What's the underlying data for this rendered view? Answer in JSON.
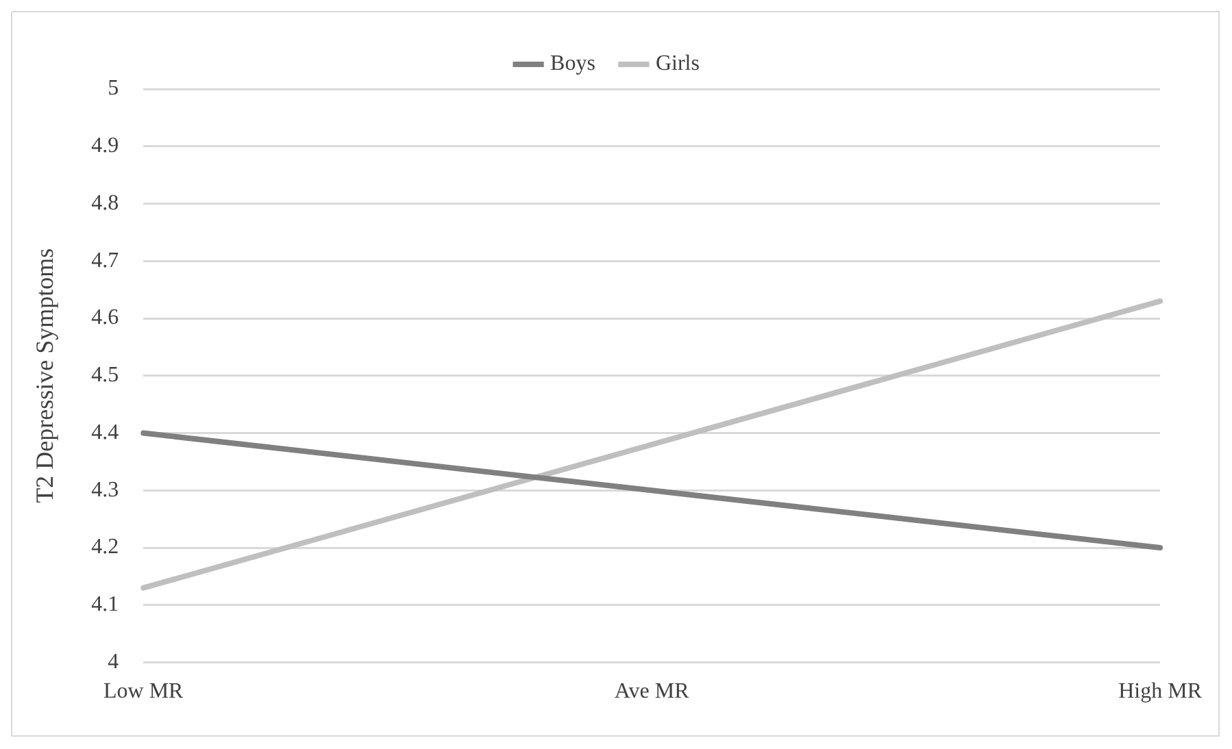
{
  "chart_data": {
    "type": "line",
    "ylabel": "T2 Depressive Symptoms",
    "categories": [
      "Low MR",
      "Ave MR",
      "High MR"
    ],
    "series": [
      {
        "name": "Boys",
        "color": "#808080",
        "values": [
          4.4,
          4.3,
          4.2
        ]
      },
      {
        "name": "Girls",
        "color": "#bfbfbf",
        "values": [
          4.13,
          4.38,
          4.63
        ]
      }
    ],
    "ylim": [
      4,
      5
    ],
    "yticks": [
      4,
      4.1,
      4.2,
      4.3,
      4.4,
      4.5,
      4.6,
      4.7,
      4.8,
      4.9,
      5
    ],
    "grid": "y",
    "legend": "top",
    "marker": "none",
    "line_style": "solid"
  }
}
